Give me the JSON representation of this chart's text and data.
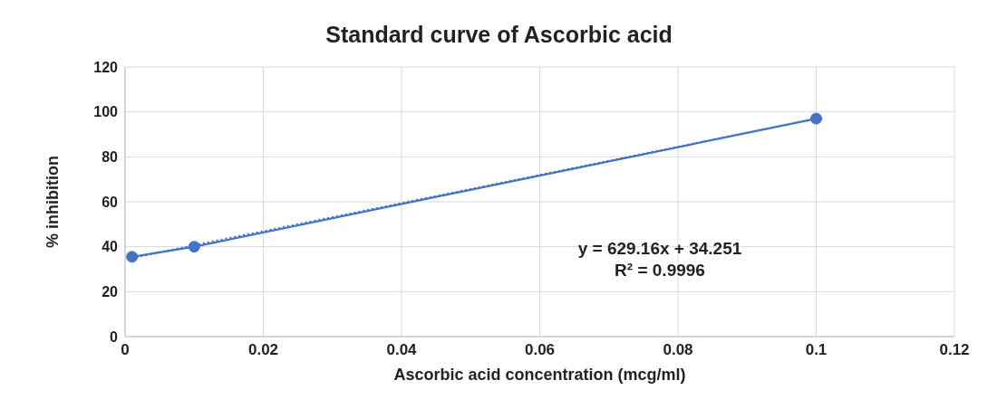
{
  "chart_data": {
    "type": "line",
    "title": "Standard curve of Ascorbic acid",
    "xlabel": "Ascorbic acid concentration (mcg/ml)",
    "ylabel": "% inhibition",
    "series": [
      {
        "color": "#4472c4",
        "x": [
          0.001,
          0.01,
          0.1
        ],
        "values": [
          35.5,
          40,
          97
        ]
      },
      {
        "type": "line",
        "color": "#4472c4",
        "x": [
          0.001,
          0.1
        ],
        "values": [
          35,
          97
        ],
        "marker": "none",
        "line_style": "dotted"
      }
    ],
    "xlim": [
      0,
      0.12
    ],
    "xticks": [
      0,
      0.02,
      0.04,
      0.06,
      0.08,
      0.1,
      0.12
    ],
    "ylim": [
      0,
      120
    ],
    "yticks": [
      0,
      20,
      40,
      60,
      80,
      100,
      120
    ],
    "grid": true,
    "marker": "circle",
    "line_style": "solid",
    "annotations": [
      "y = 629.16x + 34.251",
      "R² = 0.9996"
    ]
  }
}
